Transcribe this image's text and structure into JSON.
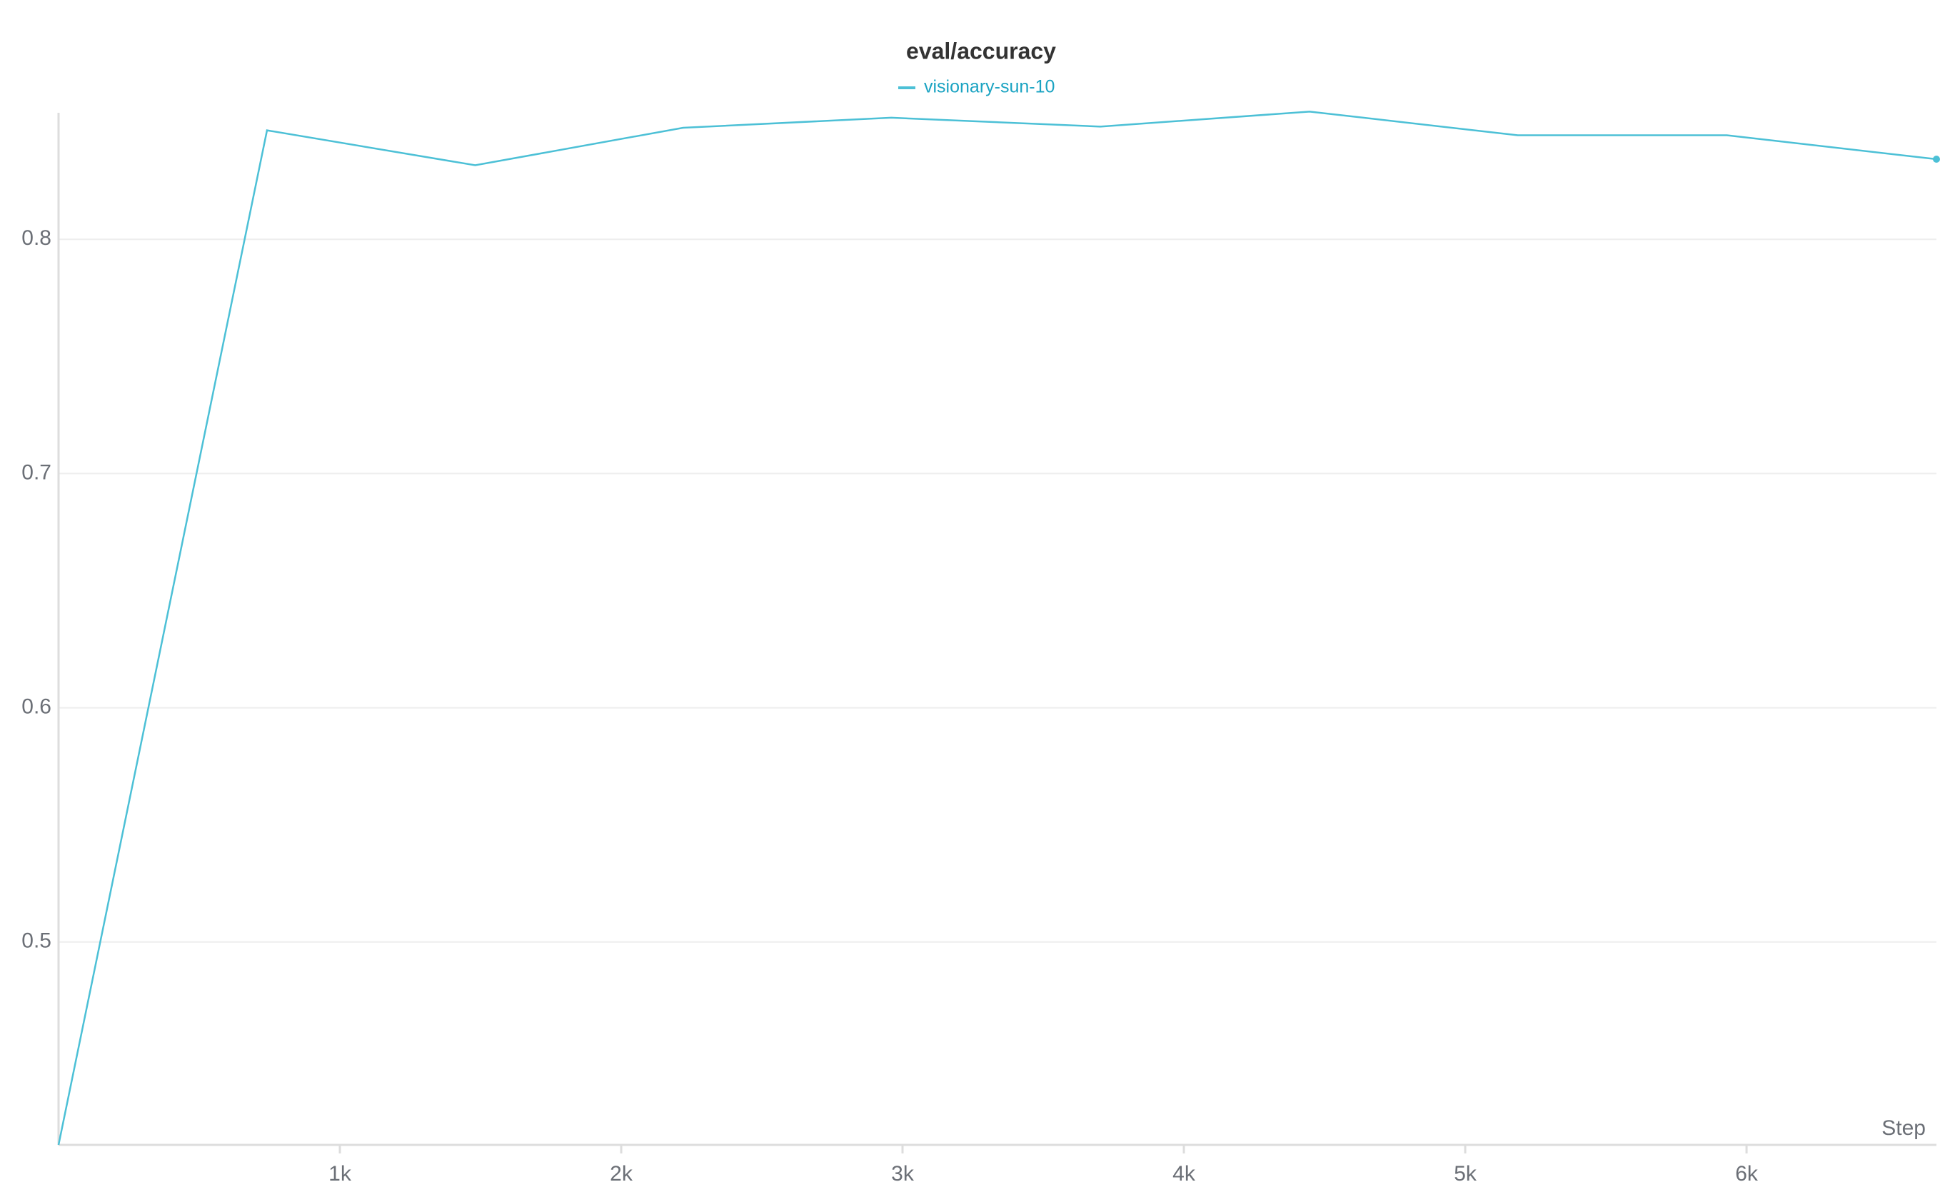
{
  "chart_data": {
    "type": "line",
    "title": "eval/accuracy",
    "x_label": "Step",
    "x": [
      0,
      741,
      1481,
      2220,
      2960,
      3703,
      4447,
      5187,
      5930,
      6675
    ],
    "series": [
      {
        "name": "visionary-sun-10",
        "color": "#4cc0d6",
        "values": [
          0.4134,
          0.8465,
          0.8316,
          0.8476,
          0.8519,
          0.8481,
          0.8545,
          0.8444,
          0.8444,
          0.8342
        ]
      }
    ],
    "xlim": [
      0,
      6675
    ],
    "ylim": [
      0.4134,
      0.854
    ],
    "xticks": [
      {
        "value": 1000,
        "label": "1k"
      },
      {
        "value": 2000,
        "label": "2k"
      },
      {
        "value": 3000,
        "label": "3k"
      },
      {
        "value": 4000,
        "label": "4k"
      },
      {
        "value": 5000,
        "label": "5k"
      },
      {
        "value": 6000,
        "label": "6k"
      }
    ],
    "yticks": [
      0.5,
      0.6,
      0.7,
      0.8
    ],
    "grid": true
  }
}
